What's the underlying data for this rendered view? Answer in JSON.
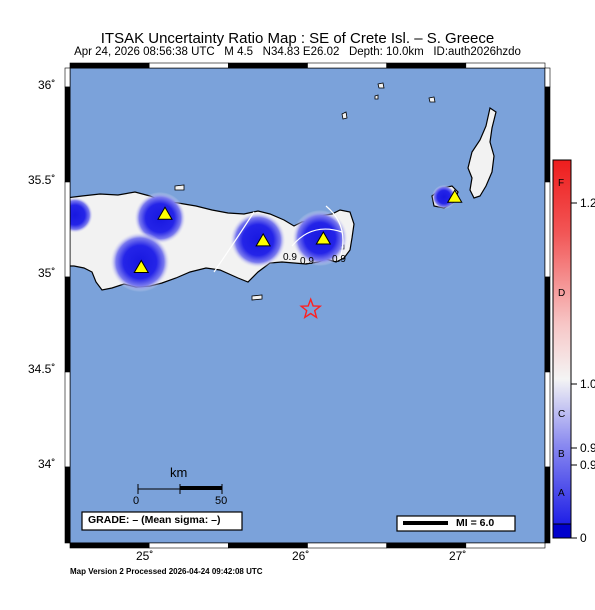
{
  "header": {
    "title": "ITSAK Uncertainty Ratio Map : SE of Crete Isl. – S. Greece",
    "subtitle": "Apr 24, 2026 08:56:38 UTC   M 4.5   N34.83 E26.02   Depth: 10.0km   ID:auth2026hzdo"
  },
  "map": {
    "lat_labels": [
      "36˚",
      "35.5˚",
      "35˚",
      "34.5˚",
      "34˚"
    ],
    "lon_labels": [
      "25˚",
      "26˚",
      "27˚"
    ],
    "scale": {
      "unit": "km",
      "start": "0",
      "end": "50"
    },
    "contour_labels": [
      "0.9",
      "0.9",
      "0.9"
    ],
    "grade_box": "GRADE: – (Mean sigma: –)",
    "mi_legend": "MI = 6.0",
    "epicenter": {
      "lat": 34.83,
      "lon": 26.02
    },
    "stations": [
      {
        "lat": 35.33,
        "lon": 25.1
      },
      {
        "lat": 35.05,
        "lon": 24.95
      },
      {
        "lat": 35.19,
        "lon": 25.72
      },
      {
        "lat": 35.2,
        "lon": 26.1
      },
      {
        "lat": 35.42,
        "lon": 26.93
      }
    ],
    "colors": {
      "sea": "#7ba2da",
      "land": "#f2f2f2",
      "station": "#ffff00",
      "epicenter": "#ff2020",
      "blue": "#1d1de6"
    }
  },
  "colorbar": {
    "grades": [
      "F",
      "D",
      "C",
      "B",
      "A"
    ],
    "values": [
      "1.2",
      "1.0",
      "0.9",
      "0.9",
      "0"
    ]
  },
  "footer": "Map Version 2 Processed 2026-04-24 09:42:08 UTC"
}
